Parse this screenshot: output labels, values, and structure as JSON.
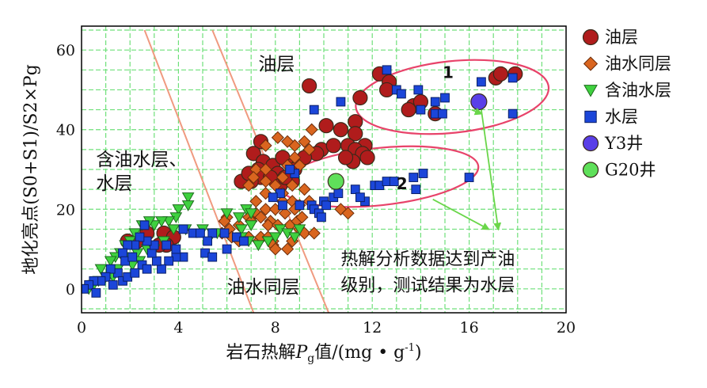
{
  "chart_data": {
    "type": "scatter",
    "xlabel_prefix": "岩石热解",
    "xlabel_var": "P",
    "xlabel_sub": "g",
    "xlabel_suffix": "值/(mg • g",
    "xlabel_sup": "-1",
    "xlabel_end": ")",
    "ylabel": "地化亮点(S0+S1)/S2×Pg",
    "xlim": [
      0,
      20
    ],
    "ylim": [
      -6,
      66
    ],
    "xticks": [
      0,
      4,
      8,
      12,
      16,
      20
    ],
    "yticks": [
      0,
      20,
      40,
      60
    ],
    "grid": true,
    "grid_color": "#6fe07a",
    "legend_position": "right",
    "series": [
      {
        "name": "油层",
        "marker": "circle",
        "color": "#b01c1c",
        "points": [
          [
            9.4,
            51
          ],
          [
            12.3,
            54
          ],
          [
            12.7,
            52
          ],
          [
            11.5,
            48
          ],
          [
            12.6,
            50
          ],
          [
            13.7,
            46
          ],
          [
            14.0,
            47
          ],
          [
            13.5,
            45
          ],
          [
            14.6,
            44
          ],
          [
            17.1,
            53
          ],
          [
            17.3,
            54
          ],
          [
            17.9,
            54
          ],
          [
            10.7,
            40
          ],
          [
            11.3,
            42
          ],
          [
            10.1,
            41
          ],
          [
            11.3,
            39
          ],
          [
            9.9,
            35
          ],
          [
            9.7,
            34
          ],
          [
            10.4,
            36
          ],
          [
            11.0,
            36
          ],
          [
            11.7,
            36
          ],
          [
            11.3,
            35
          ],
          [
            11.6,
            34
          ],
          [
            11.8,
            33
          ],
          [
            11.2,
            32
          ],
          [
            10.9,
            33
          ],
          [
            7.4,
            37
          ],
          [
            7.1,
            34
          ],
          [
            7.5,
            32
          ],
          [
            7.9,
            31
          ],
          [
            7.3,
            30
          ],
          [
            8.3,
            33
          ],
          [
            8.7,
            31
          ],
          [
            9.0,
            32
          ],
          [
            8.8,
            30
          ],
          [
            9.2,
            33
          ],
          [
            8.1,
            29
          ],
          [
            7.4,
            28
          ],
          [
            7.0,
            27
          ],
          [
            6.6,
            27
          ],
          [
            6.9,
            29
          ],
          [
            7.8,
            28
          ],
          [
            8.2,
            26
          ],
          [
            8.7,
            27
          ],
          [
            8.4,
            28
          ],
          [
            1.9,
            12
          ],
          [
            2.3,
            12
          ],
          [
            2.7,
            14
          ],
          [
            3.4,
            14
          ],
          [
            3.8,
            13
          ],
          [
            3.5,
            11
          ],
          [
            3.2,
            11
          ]
        ]
      },
      {
        "name": "油水同层",
        "marker": "diamond",
        "color": "#d9651f",
        "points": [
          [
            9.5,
            40
          ],
          [
            8.8,
            36
          ],
          [
            9.2,
            37
          ],
          [
            8.5,
            37
          ],
          [
            8.1,
            38
          ],
          [
            7.6,
            36
          ],
          [
            9.4,
            35
          ],
          [
            8.8,
            33
          ],
          [
            9.0,
            31
          ],
          [
            8.5,
            31
          ],
          [
            7.2,
            30
          ],
          [
            7.6,
            30
          ],
          [
            8.3,
            28
          ],
          [
            7.1,
            28
          ],
          [
            7.6,
            27
          ],
          [
            6.9,
            26
          ],
          [
            8.0,
            26
          ],
          [
            8.7,
            26
          ],
          [
            8.3,
            24
          ],
          [
            9.2,
            25
          ],
          [
            7.6,
            24
          ],
          [
            8.3,
            22
          ],
          [
            7.2,
            22
          ],
          [
            8.7,
            22
          ],
          [
            9.0,
            21
          ],
          [
            9.4,
            22
          ],
          [
            7.6,
            20
          ],
          [
            8.0,
            20
          ],
          [
            8.4,
            19
          ],
          [
            8.8,
            20
          ],
          [
            7.2,
            19
          ],
          [
            6.9,
            18
          ],
          [
            7.4,
            18
          ],
          [
            7.8,
            17
          ],
          [
            7.0,
            17
          ],
          [
            7.7,
            16
          ],
          [
            8.1,
            16
          ],
          [
            8.6,
            16
          ],
          [
            8.9,
            17
          ],
          [
            9.1,
            18
          ],
          [
            6.5,
            16
          ],
          [
            6.1,
            15
          ],
          [
            6.0,
            18
          ],
          [
            5.9,
            17
          ],
          [
            5.8,
            14
          ],
          [
            6.2,
            13
          ],
          [
            6.5,
            12
          ],
          [
            6.9,
            13
          ],
          [
            7.3,
            12
          ],
          [
            7.4,
            13
          ],
          [
            7.7,
            13
          ],
          [
            7.9,
            12
          ],
          [
            7.9,
            11
          ],
          [
            8.5,
            10
          ],
          [
            8.0,
            10
          ],
          [
            9.0,
            15
          ],
          [
            9.2,
            14
          ],
          [
            9.6,
            14
          ],
          [
            8.7,
            12
          ],
          [
            10.7,
            20
          ],
          [
            11.0,
            19
          ]
        ]
      },
      {
        "name": "含油水层",
        "marker": "triangle",
        "color": "#3fd13f",
        "points": [
          [
            4.4,
            23
          ],
          [
            4.4,
            21
          ],
          [
            4.0,
            20
          ],
          [
            3.9,
            18
          ],
          [
            3.6,
            17
          ],
          [
            3.3,
            17
          ],
          [
            3.0,
            16
          ],
          [
            2.8,
            17
          ],
          [
            2.5,
            16
          ],
          [
            2.2,
            14
          ],
          [
            3.8,
            15
          ],
          [
            4.3,
            15
          ],
          [
            5.0,
            15
          ],
          [
            5.4,
            14
          ],
          [
            5.6,
            14
          ],
          [
            6.0,
            19
          ],
          [
            6.8,
            20
          ],
          [
            6.5,
            18
          ],
          [
            7.0,
            19
          ],
          [
            7.0,
            16
          ],
          [
            6.6,
            15
          ],
          [
            6.6,
            13
          ],
          [
            6.9,
            12
          ],
          [
            7.3,
            11
          ],
          [
            7.7,
            12
          ],
          [
            8.0,
            13
          ],
          [
            8.2,
            15
          ],
          [
            8.5,
            14
          ],
          [
            8.8,
            13
          ],
          [
            9.0,
            15
          ],
          [
            2.0,
            12
          ],
          [
            1.8,
            11
          ],
          [
            1.6,
            9
          ],
          [
            1.9,
            8
          ],
          [
            2.3,
            9
          ],
          [
            2.7,
            10
          ],
          [
            3.0,
            10
          ],
          [
            3.4,
            12
          ],
          [
            2.4,
            7
          ],
          [
            2.1,
            6
          ],
          [
            1.4,
            8
          ],
          [
            1.2,
            7
          ],
          [
            0.8,
            5
          ],
          [
            0.7,
            2
          ],
          [
            1.0,
            3
          ],
          [
            1.3,
            3
          ],
          [
            1.5,
            5
          ],
          [
            0.3,
            0
          ],
          [
            0.5,
            1
          ]
        ]
      },
      {
        "name": "水层",
        "marker": "square",
        "color": "#1b46d9",
        "points": [
          [
            12.6,
            55
          ],
          [
            13.0,
            50
          ],
          [
            13.2,
            49
          ],
          [
            13.9,
            50
          ],
          [
            14.6,
            47
          ],
          [
            15.0,
            48
          ],
          [
            10.7,
            47
          ],
          [
            9.6,
            45
          ],
          [
            14.0,
            45
          ],
          [
            14.6,
            44
          ],
          [
            14.9,
            44
          ],
          [
            16.5,
            52
          ],
          [
            17.8,
            53
          ],
          [
            17.8,
            44
          ],
          [
            8.8,
            29
          ],
          [
            8.6,
            30
          ],
          [
            8.2,
            24
          ],
          [
            7.9,
            23
          ],
          [
            8.3,
            21
          ],
          [
            9.0,
            21
          ],
          [
            9.5,
            21
          ],
          [
            9.6,
            20
          ],
          [
            9.8,
            19
          ],
          [
            10.0,
            22
          ],
          [
            10.1,
            21
          ],
          [
            10.4,
            23
          ],
          [
            10.4,
            27
          ],
          [
            10.6,
            24
          ],
          [
            11.3,
            25
          ],
          [
            11.7,
            22
          ],
          [
            12.1,
            26
          ],
          [
            12.3,
            26
          ],
          [
            12.6,
            27
          ],
          [
            12.9,
            27
          ],
          [
            13.7,
            28
          ],
          [
            14.1,
            29
          ],
          [
            13.8,
            25
          ],
          [
            16.0,
            28
          ],
          [
            9.9,
            18
          ],
          [
            11.5,
            23
          ],
          [
            4.2,
            15
          ],
          [
            4.6,
            14
          ],
          [
            4.9,
            14
          ],
          [
            5.4,
            14
          ],
          [
            5.9,
            14
          ],
          [
            6.4,
            13
          ],
          [
            6.7,
            12
          ],
          [
            6.0,
            10
          ],
          [
            5.2,
            12
          ],
          [
            5.1,
            9
          ],
          [
            5.4,
            8
          ],
          [
            4.2,
            8
          ],
          [
            3.9,
            8
          ],
          [
            3.6,
            7
          ],
          [
            3.3,
            5
          ],
          [
            3.1,
            7
          ],
          [
            2.9,
            9
          ],
          [
            3.0,
            11
          ],
          [
            3.5,
            11
          ],
          [
            3.9,
            10
          ],
          [
            2.7,
            12
          ],
          [
            2.4,
            13
          ],
          [
            2.6,
            16
          ],
          [
            2.2,
            11
          ],
          [
            1.9,
            11
          ],
          [
            1.7,
            9
          ],
          [
            1.8,
            7
          ],
          [
            2.1,
            8
          ],
          [
            2.5,
            6
          ],
          [
            1.5,
            4
          ],
          [
            1.2,
            5
          ],
          [
            1.0,
            3
          ],
          [
            0.8,
            2
          ],
          [
            0.5,
            2
          ],
          [
            0.3,
            1
          ],
          [
            0.1,
            0
          ],
          [
            1.7,
            2
          ],
          [
            1.9,
            3
          ],
          [
            2.2,
            4
          ],
          [
            2.7,
            5
          ],
          [
            1.3,
            1
          ],
          [
            0.6,
            -1
          ]
        ]
      },
      {
        "name": "Y3井",
        "marker": "circle",
        "color": "#5a3fe8",
        "points": [
          [
            16.4,
            47
          ]
        ]
      },
      {
        "name": "G20井",
        "marker": "circle",
        "color": "#5fe05a",
        "points": [
          [
            10.5,
            27
          ]
        ]
      }
    ],
    "annotations": [
      {
        "text": "油层",
        "x": 7.3,
        "y": 55
      },
      {
        "text": "含油水层、",
        "x": 0.6,
        "y": 31
      },
      {
        "text": "水层",
        "x": 0.6,
        "y": 25
      },
      {
        "text": "油水同层",
        "x": 6.0,
        "y": -1
      },
      {
        "text": "1",
        "x": 14.9,
        "y": 53
      },
      {
        "text": "2",
        "x": 13.0,
        "y": 25
      },
      {
        "text": "热解分析数据达到产油",
        "x": 10.7,
        "y": 6
      },
      {
        "text": "级别，测试结果为水层",
        "x": 10.7,
        "y": -0.5
      }
    ],
    "boundary_lines": [
      {
        "color": "#f09a80",
        "from": [
          2.6,
          65
        ],
        "to": [
          7.1,
          -6
        ]
      },
      {
        "color": "#f09a80",
        "from": [
          5.4,
          65
        ],
        "to": [
          10.2,
          -6
        ]
      }
    ],
    "ellipses": [
      {
        "color": "#e8436a",
        "cx": 15.3,
        "cy": 48.2,
        "rx": 4.0,
        "ry": 9.0
      },
      {
        "color": "#e8436a",
        "cx": 12.3,
        "cy": 28.2,
        "rx": 4.1,
        "ry": 7.2
      }
    ],
    "arrows": [
      {
        "color": "#6ad64a",
        "from": [
          16.5,
          45
        ],
        "to": [
          17.2,
          15
        ]
      },
      {
        "color": "#6ad64a",
        "from": [
          14.5,
          22.5
        ],
        "to": [
          16.8,
          15
        ]
      },
      {
        "color": "#6ad64a",
        "from": [
          16.1,
          45
        ],
        "to": [
          16.5,
          44
        ]
      }
    ]
  }
}
